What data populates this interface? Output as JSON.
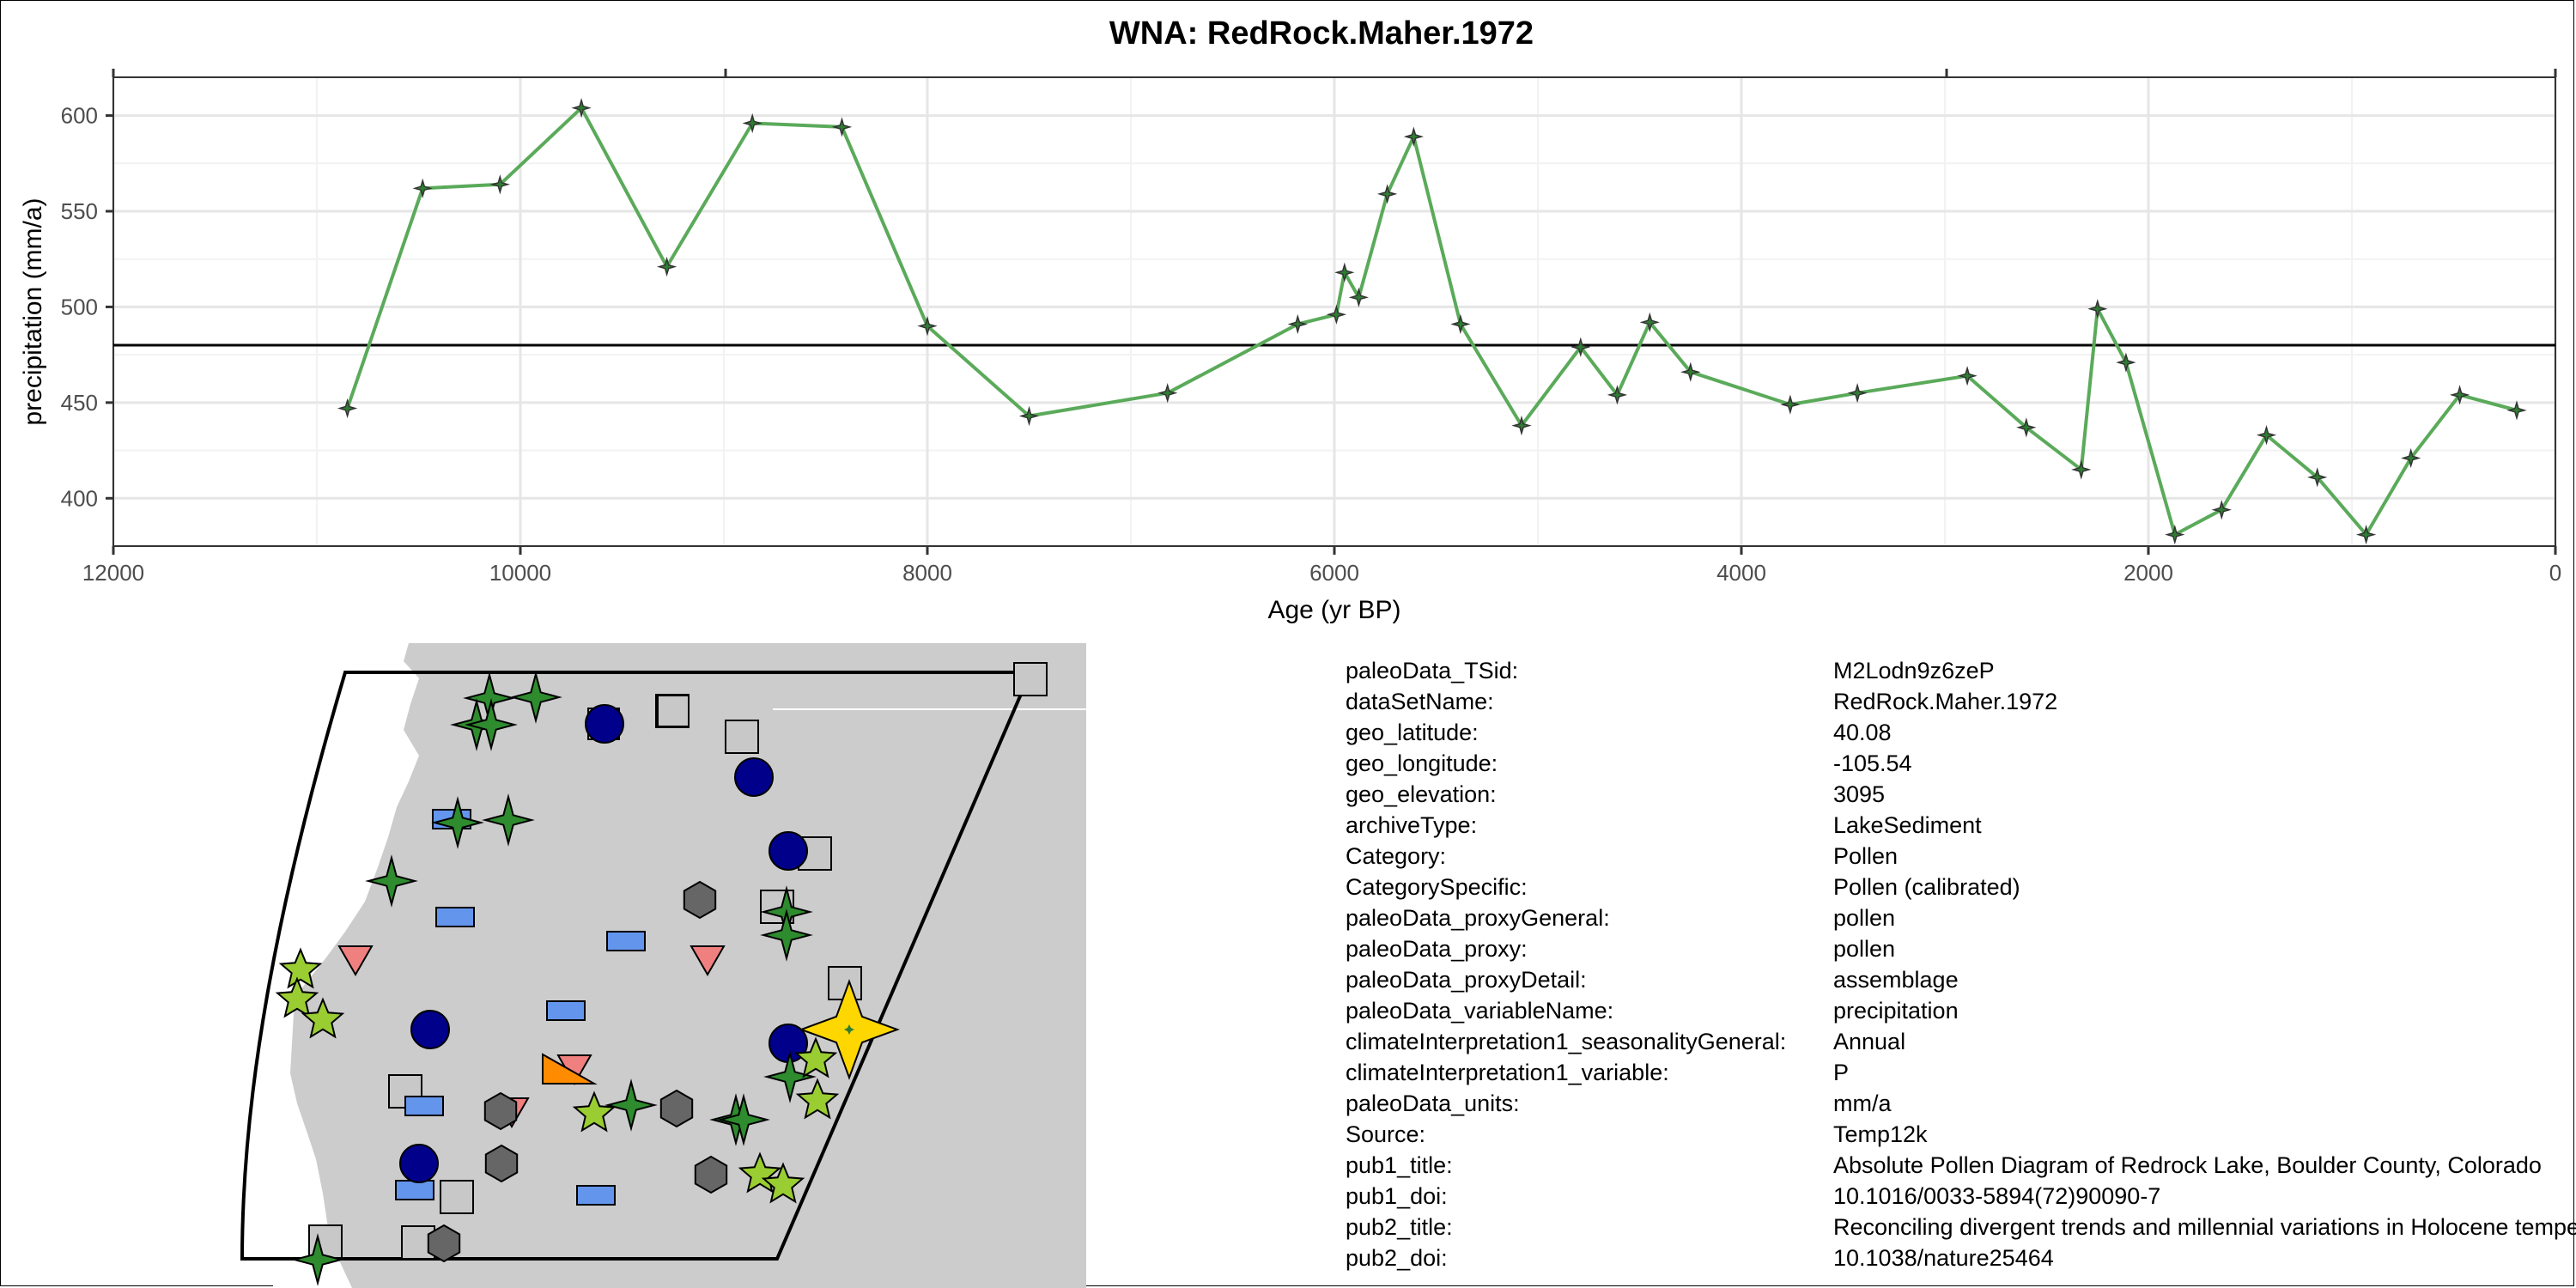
{
  "chart_data": {
    "type": "line",
    "title": "WNA: RedRock.Maher.1972",
    "xlabel": "Age (yr BP)",
    "ylabel": "precipitation (mm/a)",
    "xlim": [
      12000,
      0
    ],
    "x_reversed": true,
    "ylim": [
      375,
      620
    ],
    "x_ticks": [
      12000,
      10000,
      8000,
      6000,
      4000,
      2000,
      0
    ],
    "y_ticks": [
      400,
      450,
      500,
      550,
      600
    ],
    "reference_line": 480,
    "grid": true,
    "line_color": "#5aaa5a",
    "marker_color": "#2e7d32",
    "series": [
      {
        "x": [
          10850,
          10480,
          10100,
          9700,
          9280,
          8860,
          8420,
          8000,
          7500,
          6820,
          6180,
          5990,
          5950,
          5880,
          5740,
          5610,
          5380,
          5080,
          4790,
          4610,
          4450,
          4250,
          3760,
          3430,
          2890,
          2600,
          2330,
          2250,
          2110,
          1870,
          1640,
          1420,
          1170,
          930,
          710,
          470,
          190
        ],
        "y": [
          447,
          562,
          564,
          604,
          521,
          596,
          594,
          490,
          443,
          455,
          491,
          496,
          518,
          505,
          559,
          589,
          491,
          438,
          479,
          454,
          492,
          466,
          449,
          455,
          464,
          437,
          415,
          499,
          471,
          381,
          394,
          433,
          411,
          381,
          421,
          454,
          446
        ]
      }
    ]
  },
  "map": {
    "land_color": "#cccccc",
    "boundary_color": "#000000",
    "highlight_color": "#ffd700",
    "symbol_colors": {
      "green_star": "#2e8b2e",
      "lightgreen_star": "#9acd32",
      "navy_circle": "#00008b",
      "gray_square": "#c8c8c8",
      "blue_rect": "#6495ed",
      "pink_triangle": "#f08080",
      "dark_hexagon": "#666666",
      "orange_triangle": "#ff8c00"
    }
  },
  "metadata": [
    {
      "key": "paleoData_TSid:",
      "value": "M2Lodn9z6zeP"
    },
    {
      "key": "dataSetName:",
      "value": "RedRock.Maher.1972"
    },
    {
      "key": "geo_latitude:",
      "value": "40.08"
    },
    {
      "key": "geo_longitude:",
      "value": "-105.54"
    },
    {
      "key": "geo_elevation:",
      "value": "3095"
    },
    {
      "key": "archiveType:",
      "value": "LakeSediment"
    },
    {
      "key": "Category:",
      "value": "Pollen"
    },
    {
      "key": "CategorySpecific:",
      "value": "Pollen (calibrated)"
    },
    {
      "key": "paleoData_proxyGeneral:",
      "value": "pollen"
    },
    {
      "key": "paleoData_proxy:",
      "value": "pollen"
    },
    {
      "key": "paleoData_proxyDetail:",
      "value": "assemblage"
    },
    {
      "key": "paleoData_variableName:",
      "value": "precipitation"
    },
    {
      "key": "climateInterpretation1_seasonalityGeneral:",
      "value": "Annual"
    },
    {
      "key": "climateInterpretation1_variable:",
      "value": "P"
    },
    {
      "key": "paleoData_units:",
      "value": "mm/a"
    },
    {
      "key": "Source:",
      "value": "Temp12k"
    },
    {
      "key": "pub1_title:",
      "value": "Absolute Pollen Diagram of Redrock Lake, Boulder County, Colorado"
    },
    {
      "key": "pub1_doi:",
      "value": "10.1016/0033-5894(72)90090-7"
    },
    {
      "key": "pub2_title:",
      "value": "Reconciling divergent trends and millennial variations in Holocene temperatures"
    },
    {
      "key": "pub2_doi:",
      "value": "10.1038/nature25464"
    }
  ]
}
